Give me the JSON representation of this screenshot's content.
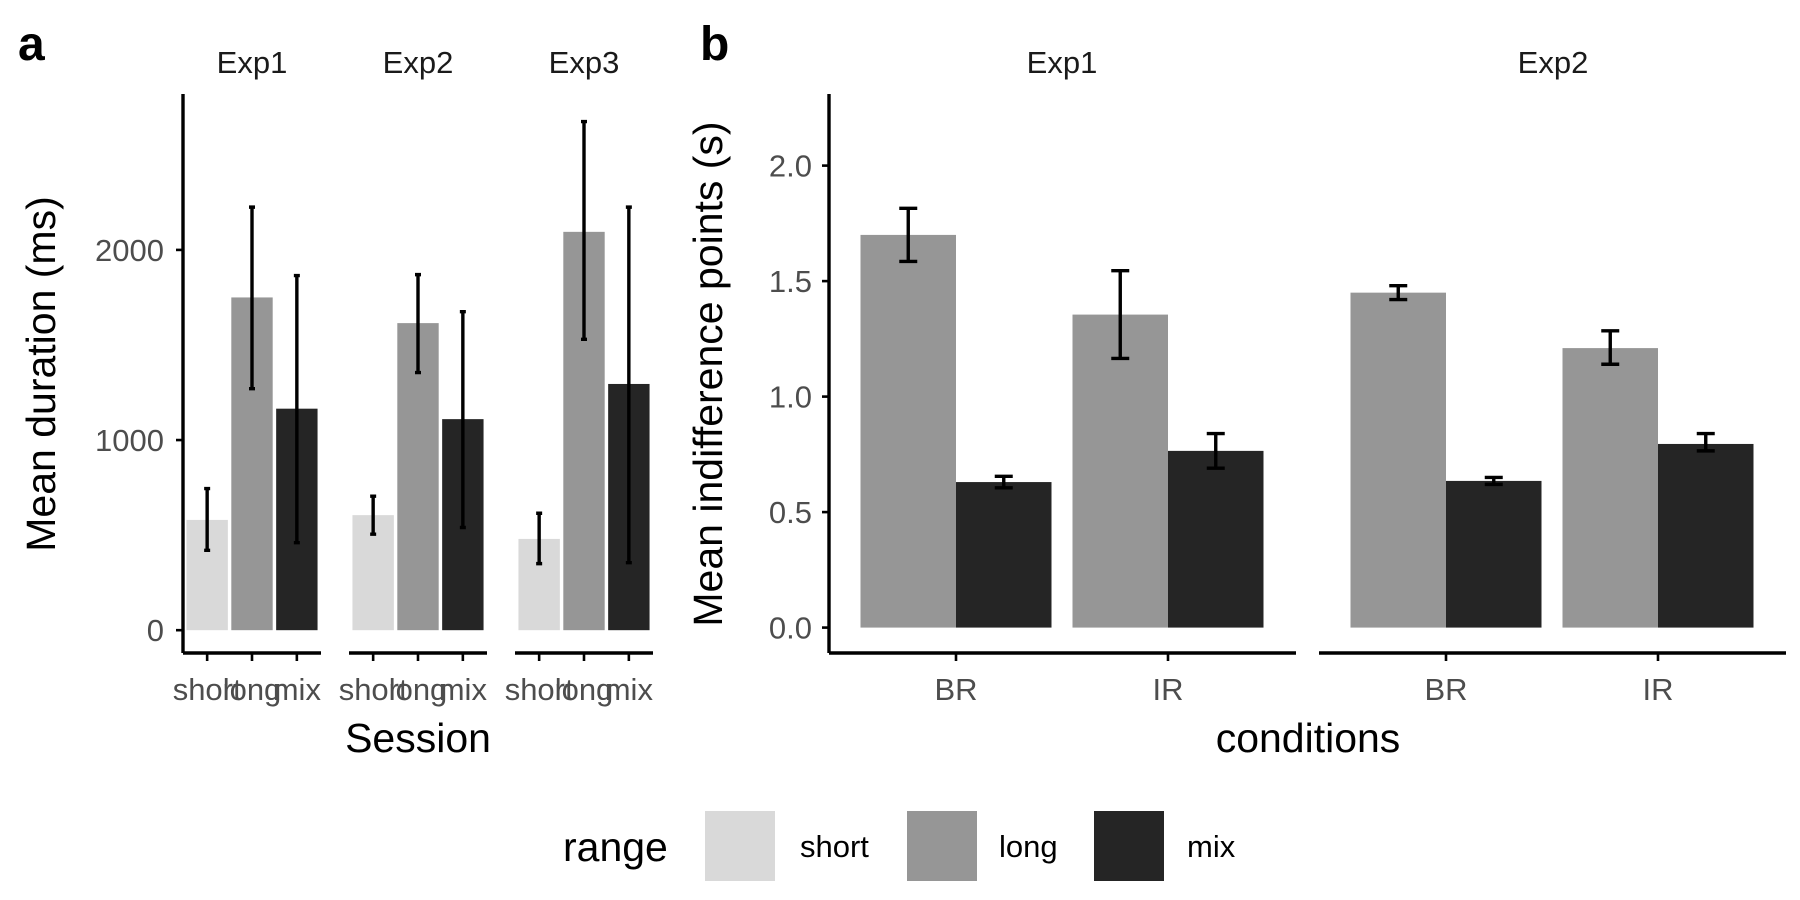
{
  "figure": {
    "panel_a_tag": "a",
    "panel_b_tag": "b"
  },
  "legend": {
    "title": "range",
    "items": [
      {
        "label": "short",
        "color": "#d9d9d9"
      },
      {
        "label": "long",
        "color": "#969696"
      },
      {
        "label": "mix",
        "color": "#252525"
      }
    ]
  },
  "chart_data": [
    {
      "type": "bar",
      "panel": "a",
      "ylabel": "Mean duration (ms)",
      "xlabel": "Session",
      "ylim": [
        -120,
        2820
      ],
      "yticks": [
        0,
        1000,
        2000
      ],
      "categories": [
        "short",
        "long",
        "mix"
      ],
      "facets": [
        {
          "name": "Exp1",
          "values": [
            580,
            1750,
            1165
          ],
          "err_low": [
            420,
            1270,
            460
          ],
          "err_high": [
            745,
            2225,
            1865
          ]
        },
        {
          "name": "Exp2",
          "values": [
            605,
            1615,
            1110
          ],
          "err_low": [
            505,
            1355,
            540
          ],
          "err_high": [
            705,
            1870,
            1675
          ]
        },
        {
          "name": "Exp3",
          "values": [
            480,
            2095,
            1295
          ],
          "err_low": [
            350,
            1530,
            355
          ],
          "err_high": [
            615,
            2675,
            2225
          ]
        }
      ],
      "grid": false
    },
    {
      "type": "bar",
      "panel": "b",
      "ylabel": "Mean indifference points (s)",
      "xlabel": "conditions",
      "ylim": [
        -0.11,
        2.31
      ],
      "yticks": [
        "0.0",
        "0.5",
        "1.0",
        "1.5",
        "2.0"
      ],
      "categories": [
        "BR",
        "IR"
      ],
      "series_order": [
        "long",
        "mix"
      ],
      "facets": [
        {
          "name": "Exp1",
          "values": {
            "BR": [
              1.7,
              0.63
            ],
            "IR": [
              1.355,
              0.765
            ]
          },
          "err_low": {
            "BR": [
              1.585,
              0.605
            ],
            "IR": [
              1.165,
              0.69
            ]
          },
          "err_high": {
            "BR": [
              1.815,
              0.655
            ],
            "IR": [
              1.545,
              0.84
            ]
          }
        },
        {
          "name": "Exp2",
          "values": {
            "BR": [
              1.45,
              0.635
            ],
            "IR": [
              1.21,
              0.795
            ]
          },
          "err_low": {
            "BR": [
              1.42,
              0.62
            ],
            "IR": [
              1.14,
              0.765
            ]
          },
          "err_high": {
            "BR": [
              1.48,
              0.65
            ],
            "IR": [
              1.285,
              0.84
            ]
          }
        }
      ],
      "grid": false
    }
  ]
}
